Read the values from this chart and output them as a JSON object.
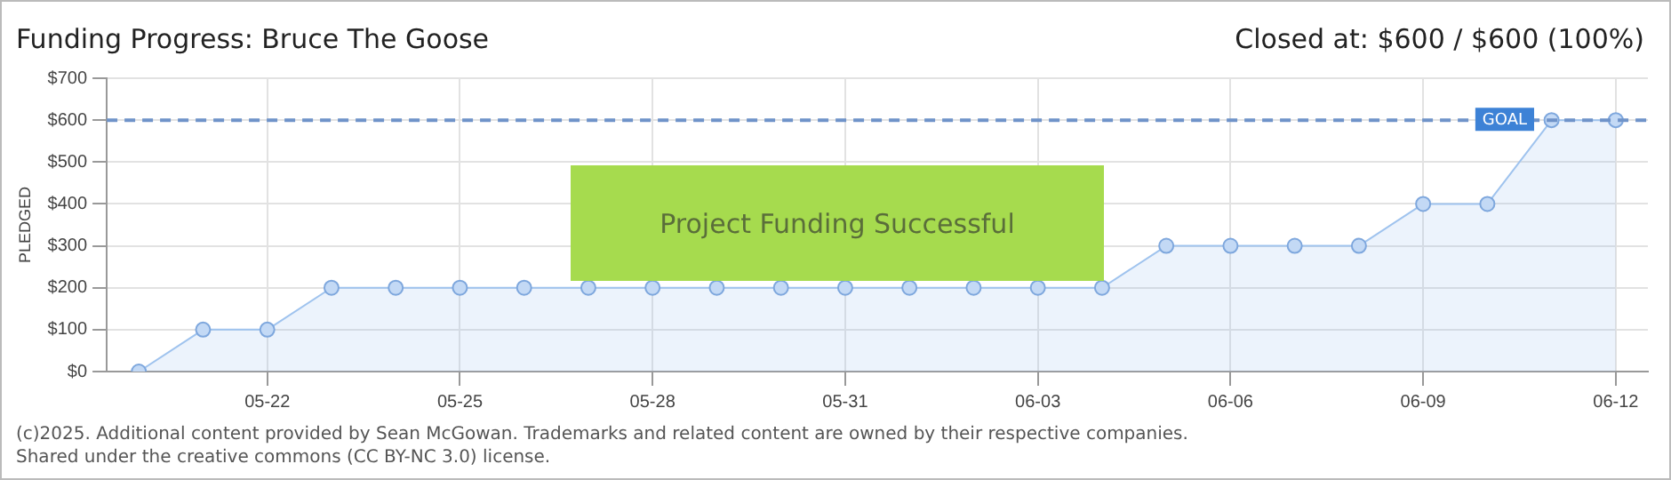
{
  "chart_data": {
    "type": "area",
    "title": "Funding Progress: Bruce The Goose",
    "subtitle": "Closed at: $600 / $600 (100%)",
    "ylabel": "PLEDGED",
    "x": [
      "--05-20",
      "--05-21",
      "--05-22",
      "--05-23",
      "--05-24",
      "--05-25",
      "--05-26",
      "--05-27",
      "--05-28",
      "--05-29",
      "--05-30",
      "--05-31",
      "--06-01",
      "--06-02",
      "--06-03",
      "--06-04",
      "--06-05",
      "--06-06",
      "--06-07",
      "--06-08",
      "--06-09",
      "--06-10",
      "--06-11",
      "--06-12"
    ],
    "series": [
      {
        "color": "#9fc3ee",
        "values": [
          0,
          100,
          100,
          200,
          200,
          200,
          200,
          200,
          200,
          200,
          200,
          200,
          200,
          200,
          200,
          200,
          300,
          300,
          300,
          300,
          400,
          400,
          600,
          600
        ]
      }
    ],
    "xlim": [
      "--05-19T12:00",
      "--06-12T12:00"
    ],
    "xticks": [
      {
        "value": "--05-22",
        "label": "05-22"
      },
      {
        "value": "--05-25",
        "label": "05-25"
      },
      {
        "value": "--05-28",
        "label": "05-28"
      },
      {
        "value": "--05-31",
        "label": "05-31"
      },
      {
        "value": "--06-03",
        "label": "06-03"
      },
      {
        "value": "--06-06",
        "label": "06-06"
      },
      {
        "value": "--06-09",
        "label": "06-09"
      },
      {
        "value": "--06-12",
        "label": "06-12"
      }
    ],
    "ylim": [
      0,
      700
    ],
    "yticks": [
      {
        "value": 0,
        "label": "$0"
      },
      {
        "value": 100,
        "label": "$100"
      },
      {
        "value": 200,
        "label": "$200"
      },
      {
        "value": 300,
        "label": "$300"
      },
      {
        "value": 400,
        "label": "$400"
      },
      {
        "value": 500,
        "label": "$500"
      },
      {
        "value": 600,
        "label": "$600"
      },
      {
        "value": 700,
        "label": "$700"
      }
    ],
    "ref_lines": [
      {
        "axis": "y",
        "value": 600,
        "label": "GOAL",
        "color": "#6f93c9",
        "line_style": "dashed"
      }
    ],
    "annotations": [
      "Project Funding Successful",
      "(c)2025. Additional content provided by Sean McGowan. Trademarks and related content are owned by their respective companies.",
      "Shared under the creative commons (CC BY-NC 3.0) license."
    ],
    "grid": true,
    "legend": false,
    "marker": "circle",
    "line_style": "solid"
  }
}
